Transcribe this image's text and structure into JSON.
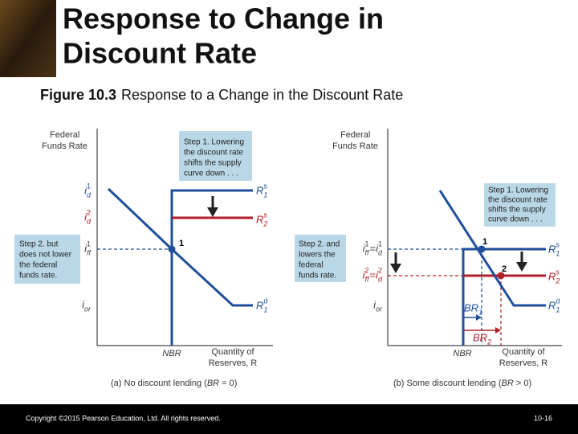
{
  "header": {
    "title_line1": "Response to Change in",
    "title_line2": "Discount Rate",
    "figure_label": "Figure 10.3",
    "figure_caption": "Response to a Change in the Discount Rate"
  },
  "panel_a": {
    "y_axis_label": [
      "Federal",
      "Funds Rate"
    ],
    "x_axis_label": [
      "Quantity of",
      "Reserves, R"
    ],
    "nbr": "NBR",
    "step1": [
      "Step 1. Lowering",
      "the discount rate",
      "shifts the supply",
      "curve down . . ."
    ],
    "step2": [
      "Step 2. but",
      "does not lower",
      "the federal",
      "funds rate."
    ],
    "point1": "1",
    "rate_labels": {
      "id1": [
        {
          "base": "i",
          "sub": "d",
          "sup": "1"
        }
      ],
      "id2": [
        {
          "base": "i",
          "sub": "d",
          "sup": "2"
        }
      ],
      "iff1": [
        {
          "base": "i",
          "sub": "ff",
          "sup": "1"
        }
      ],
      "ior": [
        {
          "base": "i",
          "sub": "or"
        }
      ]
    },
    "curve_labels": {
      "R1s": [
        {
          "base": "R",
          "sub": "1",
          "sup": "s"
        }
      ],
      "R2s": [
        {
          "base": "R",
          "sub": "2",
          "sup": "s"
        }
      ],
      "R1d": [
        {
          "base": "R",
          "sub": "1",
          "sup": "d"
        }
      ]
    },
    "caption": [
      "(a) No discount lending (",
      "BR",
      " = 0)"
    ]
  },
  "panel_b": {
    "y_axis_label": [
      "Federal",
      "Funds Rate"
    ],
    "x_axis_label": [
      "Quantity of",
      "Reserves, R"
    ],
    "nbr": "NBR",
    "step1": [
      "Step 1. Lowering",
      "the discount rate",
      "shifts the supply",
      "curve down . . ."
    ],
    "step2": [
      "Step 2. and",
      "lowers the",
      "federal",
      "funds rate."
    ],
    "point1": "1",
    "point2": "2",
    "rate_labels": {
      "iff1": [
        {
          "base": "i",
          "sub": "ff",
          "sup": "1"
        },
        {
          "text": " = "
        },
        {
          "base": "i",
          "sub": "d",
          "sup": "1"
        }
      ],
      "iff2": [
        {
          "base": "i",
          "sub": "ff",
          "sup": "2"
        },
        {
          "text": " = "
        },
        {
          "base": "i",
          "sub": "d",
          "sup": "2"
        }
      ],
      "ior": [
        {
          "base": "i",
          "sub": "or"
        }
      ]
    },
    "curve_labels": {
      "R1s": [
        {
          "base": "R",
          "sub": "1",
          "sup": "s"
        }
      ],
      "R2s": [
        {
          "base": "R",
          "sub": "2",
          "sup": "s"
        }
      ],
      "R1d": [
        {
          "base": "R",
          "sub": "1",
          "sup": "d"
        }
      ],
      "BR1": [
        {
          "base": "BR",
          "sub": "1"
        }
      ],
      "BR2": [
        {
          "base": "BR",
          "sub": "2"
        }
      ]
    },
    "caption": [
      "(b) Some discount lending (",
      "BR",
      " > 0)"
    ]
  },
  "footer": {
    "copyright": "Copyright ©2015 Pearson Education, Ltd. All rights reserved.",
    "page": "10-16"
  }
}
